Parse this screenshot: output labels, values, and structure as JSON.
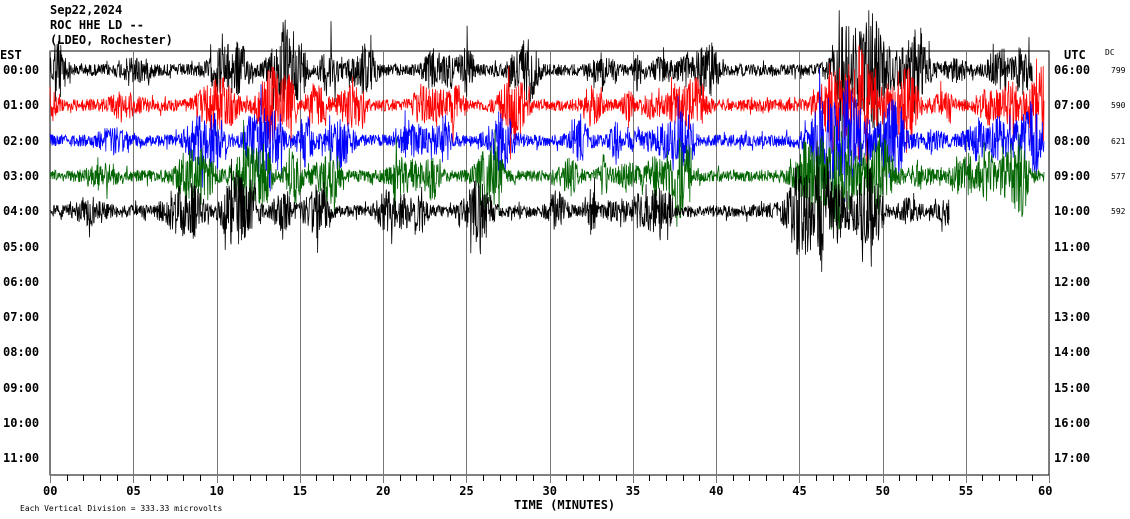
{
  "header": {
    "date": "Sep22,2024",
    "station": "ROC HHE LD --",
    "network": "(LDEO, Rochester)"
  },
  "chart_data": {
    "type": "line",
    "title": "Sep22,2024 ROC HHE LD --",
    "xlabel": "TIME (MINUTES)",
    "left_axis_label": "EST",
    "right_axis_label": "UTC",
    "dc_label": "DC",
    "x_ticks": [
      "00",
      "05",
      "10",
      "15",
      "20",
      "25",
      "30",
      "35",
      "40",
      "45",
      "50",
      "55",
      "60"
    ],
    "xlim": [
      0,
      60
    ],
    "grid": "vertical every 5 minutes",
    "rows_est": [
      "00:00",
      "01:00",
      "02:00",
      "03:00",
      "04:00",
      "05:00",
      "06:00",
      "07:00",
      "08:00",
      "09:00",
      "10:00",
      "11:00"
    ],
    "rows_utc": [
      "06:00",
      "07:00",
      "08:00",
      "09:00",
      "10:00",
      "11:00",
      "12:00",
      "13:00",
      "14:00",
      "15:00",
      "16:00",
      "17:00"
    ],
    "series": [
      {
        "row": "00:00",
        "color": "#000000",
        "dc": "799",
        "end_minute": 59
      },
      {
        "row": "01:00",
        "color": "#ff0000",
        "dc": "590",
        "end_minute": 60
      },
      {
        "row": "02:00",
        "color": "#0000ff",
        "dc": "621",
        "end_minute": 60
      },
      {
        "row": "03:00",
        "color": "#006400",
        "dc": "577",
        "end_minute": 60
      },
      {
        "row": "04:00",
        "color": "#000000",
        "dc": "592",
        "end_minute": 54
      }
    ]
  },
  "footer": {
    "scale_note": "Each Vertical Division =  333.33 microvolts"
  }
}
